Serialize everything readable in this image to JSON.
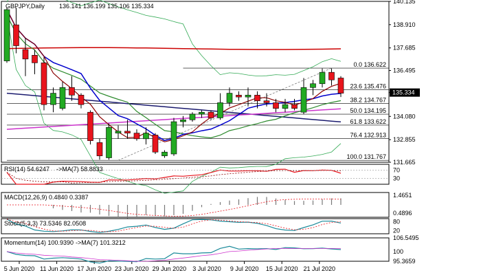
{
  "chart_data": {
    "type": "candlestick",
    "title": "GBPJPY,Daily",
    "ohlc_text": "136.141 136.199 135.106 135.334",
    "last_price": "135.334",
    "colors": {
      "bull": "#22aa22",
      "bear": "#e8141c",
      "ma_red": "#cc0000",
      "ma_darkred": "#8b0000",
      "ma_blue": "#0000cc",
      "ma_navy": "#1a1a6e",
      "ma_green": "#2e8b2e",
      "ma_magenta": "#cc33cc",
      "bollinger": "#33aa55",
      "fib": "#000000",
      "bg": "#ffffff"
    },
    "price_axis": {
      "min": 131.665,
      "max": 140.135,
      "ticks": [
        "140.135",
        "138.910",
        "137.685",
        "136.495",
        "135.334",
        "134.080",
        "132.855",
        "131.665"
      ]
    },
    "x_labels": [
      "5 Jun 2020",
      "11 Jun 2020",
      "17 Jun 2020",
      "23 Jun 2020",
      "29 Jun 2020",
      "3 Jul 2020",
      "9 Jul 2020",
      "15 Jul 2020",
      "21 Jul 2020"
    ],
    "candles": [
      {
        "o": 137.0,
        "h": 139.8,
        "l": 136.9,
        "c": 139.7
      },
      {
        "o": 138.9,
        "h": 139.8,
        "l": 137.4,
        "c": 137.8
      },
      {
        "o": 137.6,
        "h": 138.2,
        "l": 136.2,
        "c": 137.1
      },
      {
        "o": 137.3,
        "h": 137.6,
        "l": 136.3,
        "c": 136.9
      },
      {
        "o": 136.9,
        "h": 137.2,
        "l": 134.4,
        "c": 134.7
      },
      {
        "o": 134.7,
        "h": 135.6,
        "l": 134.3,
        "c": 135.3
      },
      {
        "o": 134.5,
        "h": 135.9,
        "l": 134.4,
        "c": 135.6
      },
      {
        "o": 135.6,
        "h": 136.2,
        "l": 134.9,
        "c": 135.2
      },
      {
        "o": 135.2,
        "h": 135.3,
        "l": 134.5,
        "c": 134.7
      },
      {
        "o": 134.3,
        "h": 134.4,
        "l": 132.6,
        "c": 132.8
      },
      {
        "o": 132.7,
        "h": 132.9,
        "l": 131.8,
        "c": 132.0
      },
      {
        "o": 131.9,
        "h": 133.7,
        "l": 131.8,
        "c": 133.5
      },
      {
        "o": 133.2,
        "h": 133.6,
        "l": 132.9,
        "c": 133.3
      },
      {
        "o": 133.3,
        "h": 133.9,
        "l": 132.9,
        "c": 133.2
      },
      {
        "o": 133.2,
        "h": 133.4,
        "l": 132.8,
        "c": 132.9
      },
      {
        "o": 132.9,
        "h": 133.5,
        "l": 132.6,
        "c": 133.2
      },
      {
        "o": 133.1,
        "h": 133.2,
        "l": 132.1,
        "c": 132.2
      },
      {
        "o": 132.0,
        "h": 132.3,
        "l": 131.9,
        "c": 132.2
      },
      {
        "o": 132.1,
        "h": 134.0,
        "l": 132.0,
        "c": 133.8
      },
      {
        "o": 133.8,
        "h": 134.1,
        "l": 133.5,
        "c": 133.9
      },
      {
        "o": 133.9,
        "h": 134.3,
        "l": 133.8,
        "c": 134.2
      },
      {
        "o": 134.2,
        "h": 134.4,
        "l": 134.0,
        "c": 134.3
      },
      {
        "o": 134.3,
        "h": 134.4,
        "l": 133.9,
        "c": 134.0
      },
      {
        "o": 134.0,
        "h": 135.3,
        "l": 133.9,
        "c": 134.8
      },
      {
        "o": 134.8,
        "h": 135.6,
        "l": 134.6,
        "c": 135.3
      },
      {
        "o": 135.2,
        "h": 135.4,
        "l": 134.9,
        "c": 135.1
      },
      {
        "o": 135.1,
        "h": 135.6,
        "l": 134.6,
        "c": 135.2
      },
      {
        "o": 135.2,
        "h": 135.4,
        "l": 134.5,
        "c": 134.9
      },
      {
        "o": 134.9,
        "h": 135.3,
        "l": 134.6,
        "c": 134.8
      },
      {
        "o": 134.8,
        "h": 135.0,
        "l": 134.3,
        "c": 134.5
      },
      {
        "o": 134.5,
        "h": 135.0,
        "l": 134.3,
        "c": 134.7
      },
      {
        "o": 134.7,
        "h": 135.0,
        "l": 134.4,
        "c": 134.5
      },
      {
        "o": 134.3,
        "h": 136.1,
        "l": 134.2,
        "c": 135.6
      },
      {
        "o": 135.6,
        "h": 136.0,
        "l": 135.2,
        "c": 135.8
      },
      {
        "o": 135.8,
        "h": 136.6,
        "l": 135.6,
        "c": 136.4
      },
      {
        "o": 136.4,
        "h": 136.6,
        "l": 135.7,
        "c": 136.0
      },
      {
        "o": 136.1,
        "h": 136.2,
        "l": 135.1,
        "c": 135.3
      }
    ],
    "fib_levels": [
      {
        "label": "0.0 136.622",
        "value": 136.622
      },
      {
        "label": "23.6 135.476",
        "value": 135.476
      },
      {
        "label": "38.2 134.767",
        "value": 134.767
      },
      {
        "label": "50.0 134.195",
        "value": 134.195
      },
      {
        "label": "61.8 133.622",
        "value": 133.622
      },
      {
        "label": "76.4 132.913",
        "value": 132.913
      },
      {
        "label": "100.0 131.767",
        "value": 131.767
      }
    ],
    "rsi": {
      "label": "RSI(14) 54.6247",
      "ma_label": "->MA(7) 58.8833",
      "ticks": [
        "70",
        "30"
      ]
    },
    "macd": {
      "label": "MACD(12,26,9) 0.4840 0.3387",
      "ticks": [
        "1.4651",
        "0.4896"
      ]
    },
    "stoch": {
      "label": "Stoch(5,3,3) 73.5346 82.0508",
      "ticks": [
        "80",
        "20"
      ]
    },
    "momentum": {
      "label": "Momentum(14) 100.9390",
      "ma_label": "->MA(7) 101.3212",
      "ticks": [
        "106.5495",
        "100",
        "95.3659"
      ]
    }
  }
}
